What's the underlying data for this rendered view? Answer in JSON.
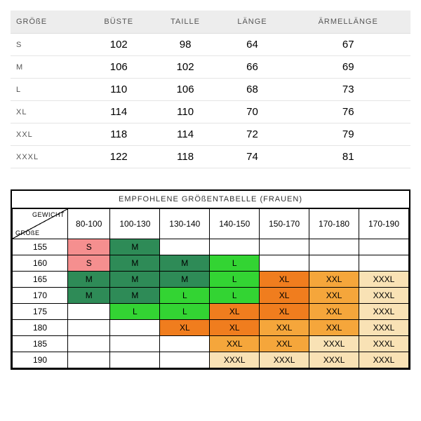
{
  "measurements": {
    "headers": [
      "GRÖßE",
      "BÜSTE",
      "TAILLE",
      "LÄNGE",
      "ÄRMELLÄNGE"
    ],
    "rows": [
      [
        "S",
        "102",
        "98",
        "64",
        "67"
      ],
      [
        "M",
        "106",
        "102",
        "66",
        "69"
      ],
      [
        "L",
        "110",
        "106",
        "68",
        "73"
      ],
      [
        "XL",
        "114",
        "110",
        "70",
        "76"
      ],
      [
        "XXL",
        "118",
        "114",
        "72",
        "79"
      ],
      [
        "XXXL",
        "122",
        "118",
        "74",
        "81"
      ]
    ]
  },
  "recommendation": {
    "title": "EMPFOHLENE GRÖßENTABELLE (FRAUEN)",
    "corner_top": "GEWICHT",
    "corner_bottom": "GRÖßE",
    "col_headers": [
      "80-100",
      "100-130",
      "130-140",
      "140-150",
      "150-170",
      "170-180",
      "170-190"
    ],
    "row_headers": [
      "155",
      "160",
      "165",
      "170",
      "175",
      "180",
      "185",
      "190"
    ],
    "colors": {
      "pink": "#f58f8f",
      "darkgreen": "#2e8b57",
      "brightgreen": "#33d433",
      "darkorange": "#f07d1e",
      "orange": "#f5a63b",
      "lightpeach": "#f9e2b5",
      "empty": "#ffffff"
    },
    "cells": [
      [
        {
          "t": "S",
          "c": "pink"
        },
        {
          "t": "M",
          "c": "darkgreen"
        },
        {
          "t": "",
          "c": "empty"
        },
        {
          "t": "",
          "c": "empty"
        },
        {
          "t": "",
          "c": "empty"
        },
        {
          "t": "",
          "c": "empty"
        },
        {
          "t": "",
          "c": "empty"
        }
      ],
      [
        {
          "t": "S",
          "c": "pink"
        },
        {
          "t": "M",
          "c": "darkgreen"
        },
        {
          "t": "M",
          "c": "darkgreen"
        },
        {
          "t": "L",
          "c": "brightgreen"
        },
        {
          "t": "",
          "c": "empty"
        },
        {
          "t": "",
          "c": "empty"
        },
        {
          "t": "",
          "c": "empty"
        }
      ],
      [
        {
          "t": "M",
          "c": "darkgreen"
        },
        {
          "t": "M",
          "c": "darkgreen"
        },
        {
          "t": "M",
          "c": "darkgreen"
        },
        {
          "t": "L",
          "c": "brightgreen"
        },
        {
          "t": "XL",
          "c": "darkorange"
        },
        {
          "t": "XXL",
          "c": "orange"
        },
        {
          "t": "XXXL",
          "c": "lightpeach"
        }
      ],
      [
        {
          "t": "M",
          "c": "darkgreen"
        },
        {
          "t": "M",
          "c": "darkgreen"
        },
        {
          "t": "L",
          "c": "brightgreen"
        },
        {
          "t": "L",
          "c": "brightgreen"
        },
        {
          "t": "XL",
          "c": "darkorange"
        },
        {
          "t": "XXL",
          "c": "orange"
        },
        {
          "t": "XXXL",
          "c": "lightpeach"
        }
      ],
      [
        {
          "t": "",
          "c": "empty"
        },
        {
          "t": "L",
          "c": "brightgreen"
        },
        {
          "t": "L",
          "c": "brightgreen"
        },
        {
          "t": "XL",
          "c": "darkorange"
        },
        {
          "t": "XL",
          "c": "darkorange"
        },
        {
          "t": "XXL",
          "c": "orange"
        },
        {
          "t": "XXXL",
          "c": "lightpeach"
        }
      ],
      [
        {
          "t": "",
          "c": "empty"
        },
        {
          "t": "",
          "c": "empty"
        },
        {
          "t": "XL",
          "c": "darkorange"
        },
        {
          "t": "XL",
          "c": "darkorange"
        },
        {
          "t": "XXL",
          "c": "orange"
        },
        {
          "t": "XXL",
          "c": "orange"
        },
        {
          "t": "XXXL",
          "c": "lightpeach"
        }
      ],
      [
        {
          "t": "",
          "c": "empty"
        },
        {
          "t": "",
          "c": "empty"
        },
        {
          "t": "",
          "c": "empty"
        },
        {
          "t": "XXL",
          "c": "orange"
        },
        {
          "t": "XXL",
          "c": "orange"
        },
        {
          "t": "XXXL",
          "c": "lightpeach"
        },
        {
          "t": "XXXL",
          "c": "lightpeach"
        }
      ],
      [
        {
          "t": "",
          "c": "empty"
        },
        {
          "t": "",
          "c": "empty"
        },
        {
          "t": "",
          "c": "empty"
        },
        {
          "t": "XXXL",
          "c": "lightpeach"
        },
        {
          "t": "XXXL",
          "c": "lightpeach"
        },
        {
          "t": "XXXL",
          "c": "lightpeach"
        },
        {
          "t": "XXXL",
          "c": "lightpeach"
        }
      ]
    ]
  }
}
